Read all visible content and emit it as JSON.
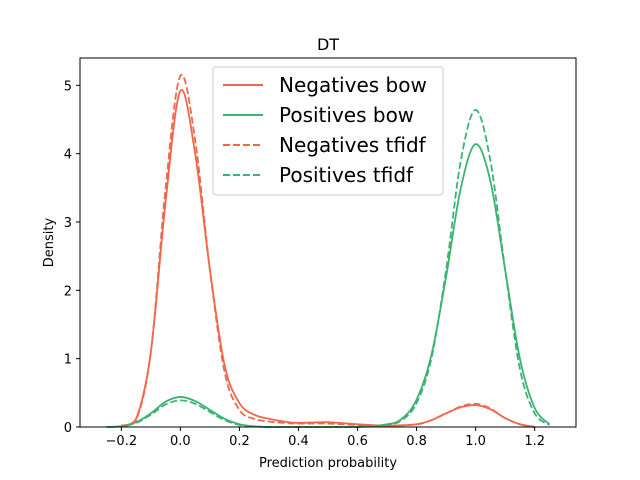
{
  "chart_data": {
    "type": "line",
    "title": "DT",
    "xlabel": "Prediction probability",
    "ylabel": "Density",
    "xlim": [
      -0.34,
      1.34
    ],
    "ylim": [
      0,
      5.4
    ],
    "xticks": [
      -0.2,
      0.0,
      0.2,
      0.4,
      0.6,
      0.8,
      1.0,
      1.2
    ],
    "xtick_labels": [
      "−0.2",
      "0.0",
      "0.2",
      "0.4",
      "0.6",
      "0.8",
      "1.0",
      "1.2"
    ],
    "yticks": [
      0,
      1,
      2,
      3,
      4,
      5
    ],
    "ytick_labels": [
      "0",
      "1",
      "2",
      "3",
      "4",
      "5"
    ],
    "grid": false,
    "legend_position": "top-center",
    "series": [
      {
        "name": "Negatives bow",
        "color": "#f0674c",
        "style": "solid",
        "x": [
          -0.2,
          -0.15,
          -0.1,
          -0.05,
          0.0,
          0.05,
          0.1,
          0.15,
          0.2,
          0.25,
          0.3,
          0.35,
          0.4,
          0.5,
          0.6,
          0.7,
          0.8,
          0.85,
          0.9,
          0.95,
          1.0,
          1.05,
          1.1,
          1.15,
          1.2
        ],
        "y": [
          0.02,
          0.12,
          1.1,
          3.3,
          4.92,
          4.0,
          2.3,
          0.9,
          0.35,
          0.18,
          0.12,
          0.08,
          0.06,
          0.07,
          0.04,
          0.02,
          0.04,
          0.1,
          0.2,
          0.29,
          0.32,
          0.26,
          0.13,
          0.04,
          0.0
        ]
      },
      {
        "name": "Positives bow",
        "color": "#3cb371",
        "style": "solid",
        "x": [
          -0.25,
          -0.2,
          -0.15,
          -0.1,
          -0.05,
          0.0,
          0.05,
          0.1,
          0.15,
          0.2,
          0.25,
          0.3,
          0.4,
          0.5,
          0.6,
          0.7,
          0.75,
          0.8,
          0.85,
          0.9,
          0.95,
          1.0,
          1.05,
          1.1,
          1.15,
          1.2,
          1.25
        ],
        "y": [
          0.0,
          0.01,
          0.07,
          0.2,
          0.37,
          0.44,
          0.38,
          0.25,
          0.12,
          0.04,
          0.01,
          0.0,
          0.0,
          0.0,
          0.0,
          0.04,
          0.12,
          0.4,
          1.05,
          2.2,
          3.5,
          4.14,
          3.6,
          2.3,
          1.0,
          0.28,
          0.04
        ]
      },
      {
        "name": "Negatives tfidf",
        "color": "#f0674c",
        "style": "dashed",
        "x": [
          -0.2,
          -0.15,
          -0.1,
          -0.05,
          0.0,
          0.05,
          0.1,
          0.15,
          0.2,
          0.25,
          0.3,
          0.35,
          0.4,
          0.5,
          0.6,
          0.7,
          0.8,
          0.85,
          0.9,
          0.95,
          1.0,
          1.05,
          1.1,
          1.15,
          1.2
        ],
        "y": [
          0.01,
          0.1,
          1.1,
          3.5,
          5.14,
          4.2,
          2.3,
          0.8,
          0.25,
          0.12,
          0.08,
          0.06,
          0.05,
          0.05,
          0.03,
          0.02,
          0.04,
          0.1,
          0.2,
          0.3,
          0.34,
          0.27,
          0.13,
          0.04,
          0.0
        ]
      },
      {
        "name": "Positives tfidf",
        "color": "#3cb371",
        "style": "dashed",
        "x": [
          -0.25,
          -0.2,
          -0.15,
          -0.1,
          -0.05,
          0.0,
          0.05,
          0.1,
          0.15,
          0.2,
          0.25,
          0.3,
          0.4,
          0.5,
          0.6,
          0.7,
          0.75,
          0.8,
          0.85,
          0.9,
          0.95,
          1.0,
          1.05,
          1.1,
          1.15,
          1.2,
          1.25
        ],
        "y": [
          0.0,
          0.01,
          0.06,
          0.18,
          0.33,
          0.39,
          0.34,
          0.22,
          0.1,
          0.03,
          0.01,
          0.0,
          0.0,
          0.0,
          0.0,
          0.03,
          0.1,
          0.35,
          1.0,
          2.3,
          3.9,
          4.64,
          3.9,
          2.3,
          0.85,
          0.2,
          0.03
        ]
      }
    ]
  }
}
